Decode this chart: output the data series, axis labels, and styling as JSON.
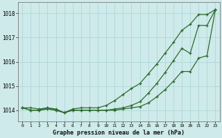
{
  "x": [
    0,
    1,
    2,
    3,
    4,
    5,
    6,
    7,
    8,
    9,
    10,
    11,
    12,
    13,
    14,
    15,
    16,
    17,
    18,
    19,
    20,
    21,
    22,
    23
  ],
  "line1": [
    1014.1,
    1014.0,
    1014.0,
    1014.1,
    1014.05,
    1013.9,
    1014.05,
    1014.1,
    1014.1,
    1014.1,
    1014.2,
    1014.4,
    1014.65,
    1014.9,
    1015.1,
    1015.5,
    1015.9,
    1016.35,
    1016.8,
    1017.3,
    1017.55,
    1017.95,
    1017.95,
    1018.15
  ],
  "line2": [
    1014.1,
    1014.0,
    1014.0,
    1014.05,
    1014.0,
    1013.9,
    1014.0,
    1014.0,
    1014.0,
    1014.0,
    1014.0,
    1014.05,
    1014.1,
    1014.2,
    1014.35,
    1014.7,
    1015.1,
    1015.55,
    1016.05,
    1016.55,
    1016.35,
    1017.5,
    1017.5,
    1018.15
  ],
  "line3": [
    1014.1,
    1014.1,
    1014.05,
    1014.1,
    1014.0,
    1013.9,
    1014.0,
    1014.0,
    1014.0,
    1014.0,
    1014.0,
    1014.0,
    1014.05,
    1014.1,
    1014.15,
    1014.3,
    1014.55,
    1014.85,
    1015.2,
    1015.6,
    1015.6,
    1016.15,
    1016.25,
    1018.15
  ],
  "ylim": [
    1013.55,
    1018.45
  ],
  "yticks": [
    1014,
    1015,
    1016,
    1017,
    1018
  ],
  "xticks": [
    0,
    1,
    2,
    3,
    4,
    5,
    6,
    7,
    8,
    9,
    10,
    11,
    12,
    13,
    14,
    15,
    16,
    17,
    18,
    19,
    20,
    21,
    22,
    23
  ],
  "xlabel": "Graphe pression niveau de la mer (hPa)",
  "line_color": "#2d6a2d",
  "bg_color": "#ceeaea",
  "grid_color": "#a8d4d4",
  "marker": "+"
}
